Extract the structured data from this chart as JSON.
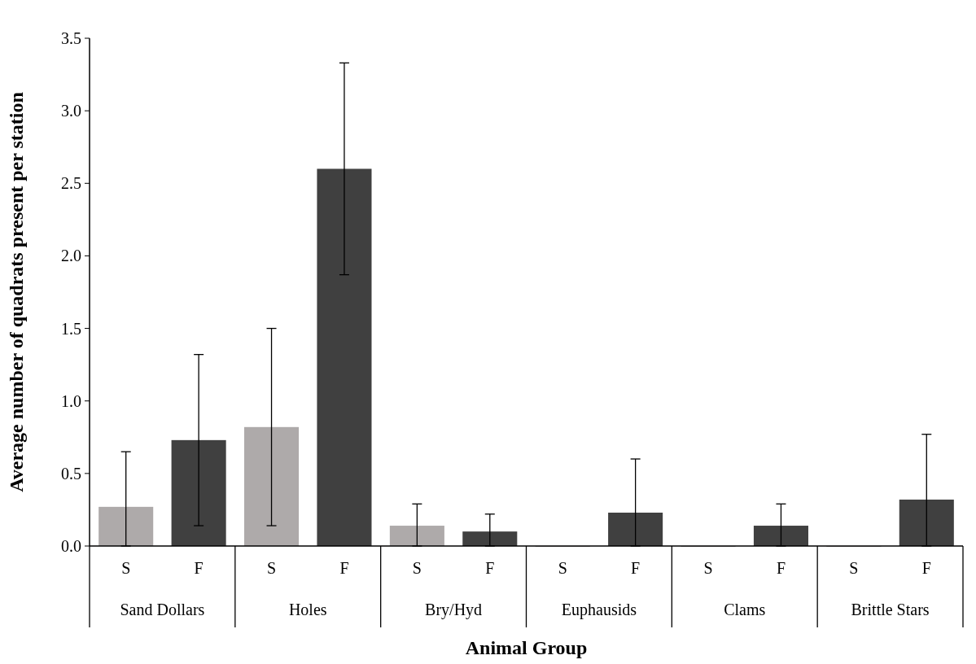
{
  "chart_data": {
    "type": "bar",
    "xlabel": "Animal Group",
    "ylabel": "Average number of quadrats present per station",
    "categories": [
      "S",
      "F",
      "S",
      "F",
      "S",
      "F",
      "S",
      "F",
      "S",
      "F",
      "S",
      "F"
    ],
    "values": [
      0.27,
      0.73,
      0.82,
      2.6,
      0.14,
      0.1,
      0,
      0.23,
      0,
      0.14,
      0,
      0.32
    ],
    "colors": [
      "#aeaaaa",
      "#404040",
      "#aeaaaa",
      "#404040",
      "#aeaaaa",
      "#404040",
      "#aeaaaa",
      "#404040",
      "#aeaaaa",
      "#404040",
      "#aeaaaa",
      "#404040"
    ],
    "errors": [
      [
        0,
        0.65
      ],
      [
        0.14,
        1.32
      ],
      [
        0.14,
        1.5
      ],
      [
        1.87,
        3.33
      ],
      [
        0,
        0.29
      ],
      [
        0,
        0.22
      ],
      null,
      [
        0,
        0.6
      ],
      null,
      [
        0,
        0.29
      ],
      null,
      [
        0,
        0.77
      ]
    ],
    "annotations": [
      "Sand Dollars",
      "Holes",
      "Bry/Hyd",
      "Euphausids",
      "Clams",
      "Brittle Stars"
    ],
    "ylim": [
      0,
      3.5
    ],
    "yticks": [
      {
        "value": 0,
        "label": "0.0"
      },
      {
        "value": 0.5,
        "label": "0.5"
      },
      {
        "value": 1,
        "label": "1.0"
      },
      {
        "value": 1.5,
        "label": "1.5"
      },
      {
        "value": 2,
        "label": "2.0"
      },
      {
        "value": 2.5,
        "label": "2.5"
      },
      {
        "value": 3,
        "label": "3.0"
      },
      {
        "value": 3.5,
        "label": "3.5"
      }
    ]
  }
}
